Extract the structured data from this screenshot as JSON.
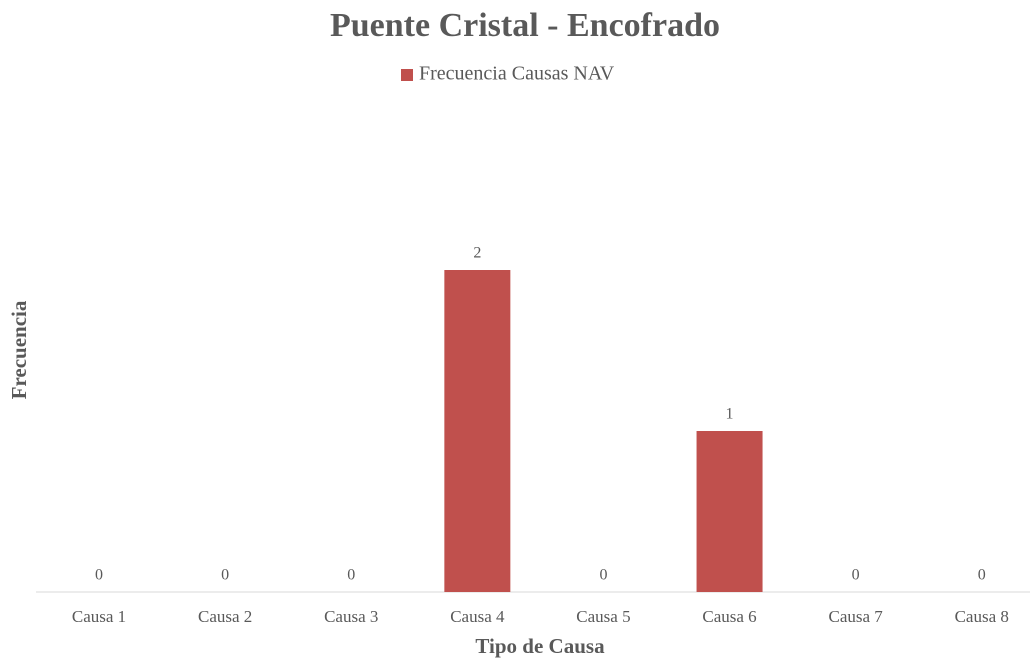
{
  "chart_data": {
    "type": "bar",
    "title": "Puente Cristal - Encofrado",
    "x_label": "Tipo de Causa",
    "y_label": "Frecuencia",
    "categories": [
      "Causa 1",
      "Causa 2",
      "Causa 3",
      "Causa 4",
      "Causa 5",
      "Causa 6",
      "Causa 7",
      "Causa 8"
    ],
    "series": [
      {
        "name": "Frecuencia Causas NAV",
        "color": "#c0504d",
        "values": [
          0,
          0,
          0,
          2,
          0,
          1,
          0,
          0
        ]
      }
    ],
    "ylim": [
      0,
      3
    ],
    "legend": "top",
    "data_labels": true
  }
}
